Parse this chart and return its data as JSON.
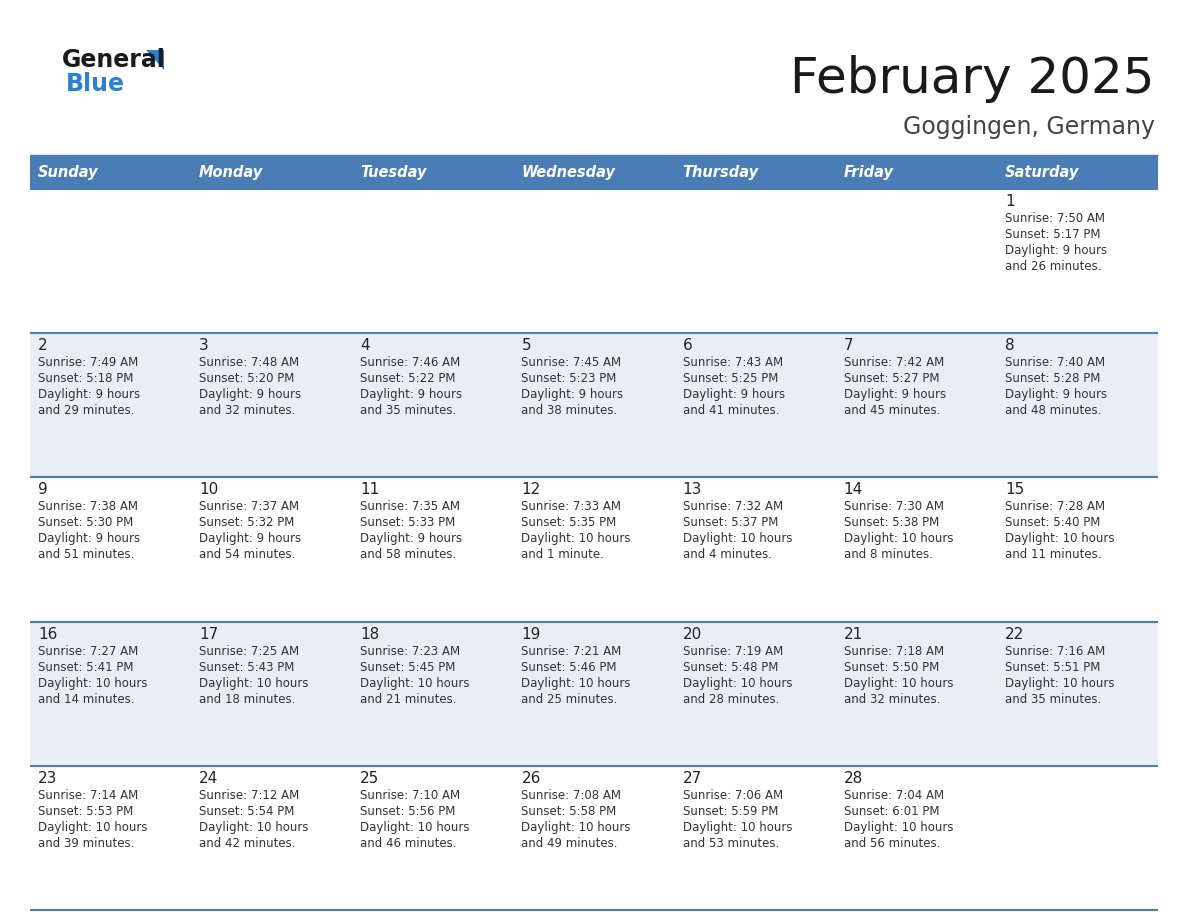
{
  "title": "February 2025",
  "subtitle": "Goggingen, Germany",
  "days_of_week": [
    "Sunday",
    "Monday",
    "Tuesday",
    "Wednesday",
    "Thursday",
    "Friday",
    "Saturday"
  ],
  "header_bg": "#4a7db5",
  "header_text": "#ffffff",
  "row_bg_odd": "#ffffff",
  "row_bg_even": "#e8eef4",
  "day_num_color": "#222222",
  "text_color": "#333333",
  "line_color": "#4a7db5",
  "logo_general_color": "#1a1a1a",
  "logo_blue_color": "#2980d4",
  "logo_triangle_color": "#2980d4",
  "title_color": "#1a1a1a",
  "subtitle_color": "#444444",
  "weeks": [
    {
      "days": [
        {
          "day": null,
          "sunrise": null,
          "sunset": null,
          "daylight_line1": null,
          "daylight_line2": null
        },
        {
          "day": null,
          "sunrise": null,
          "sunset": null,
          "daylight_line1": null,
          "daylight_line2": null
        },
        {
          "day": null,
          "sunrise": null,
          "sunset": null,
          "daylight_line1": null,
          "daylight_line2": null
        },
        {
          "day": null,
          "sunrise": null,
          "sunset": null,
          "daylight_line1": null,
          "daylight_line2": null
        },
        {
          "day": null,
          "sunrise": null,
          "sunset": null,
          "daylight_line1": null,
          "daylight_line2": null
        },
        {
          "day": null,
          "sunrise": null,
          "sunset": null,
          "daylight_line1": null,
          "daylight_line2": null
        },
        {
          "day": "1",
          "sunrise": "Sunrise: 7:50 AM",
          "sunset": "Sunset: 5:17 PM",
          "daylight_line1": "Daylight: 9 hours",
          "daylight_line2": "and 26 minutes."
        }
      ]
    },
    {
      "days": [
        {
          "day": "2",
          "sunrise": "Sunrise: 7:49 AM",
          "sunset": "Sunset: 5:18 PM",
          "daylight_line1": "Daylight: 9 hours",
          "daylight_line2": "and 29 minutes."
        },
        {
          "day": "3",
          "sunrise": "Sunrise: 7:48 AM",
          "sunset": "Sunset: 5:20 PM",
          "daylight_line1": "Daylight: 9 hours",
          "daylight_line2": "and 32 minutes."
        },
        {
          "day": "4",
          "sunrise": "Sunrise: 7:46 AM",
          "sunset": "Sunset: 5:22 PM",
          "daylight_line1": "Daylight: 9 hours",
          "daylight_line2": "and 35 minutes."
        },
        {
          "day": "5",
          "sunrise": "Sunrise: 7:45 AM",
          "sunset": "Sunset: 5:23 PM",
          "daylight_line1": "Daylight: 9 hours",
          "daylight_line2": "and 38 minutes."
        },
        {
          "day": "6",
          "sunrise": "Sunrise: 7:43 AM",
          "sunset": "Sunset: 5:25 PM",
          "daylight_line1": "Daylight: 9 hours",
          "daylight_line2": "and 41 minutes."
        },
        {
          "day": "7",
          "sunrise": "Sunrise: 7:42 AM",
          "sunset": "Sunset: 5:27 PM",
          "daylight_line1": "Daylight: 9 hours",
          "daylight_line2": "and 45 minutes."
        },
        {
          "day": "8",
          "sunrise": "Sunrise: 7:40 AM",
          "sunset": "Sunset: 5:28 PM",
          "daylight_line1": "Daylight: 9 hours",
          "daylight_line2": "and 48 minutes."
        }
      ]
    },
    {
      "days": [
        {
          "day": "9",
          "sunrise": "Sunrise: 7:38 AM",
          "sunset": "Sunset: 5:30 PM",
          "daylight_line1": "Daylight: 9 hours",
          "daylight_line2": "and 51 minutes."
        },
        {
          "day": "10",
          "sunrise": "Sunrise: 7:37 AM",
          "sunset": "Sunset: 5:32 PM",
          "daylight_line1": "Daylight: 9 hours",
          "daylight_line2": "and 54 minutes."
        },
        {
          "day": "11",
          "sunrise": "Sunrise: 7:35 AM",
          "sunset": "Sunset: 5:33 PM",
          "daylight_line1": "Daylight: 9 hours",
          "daylight_line2": "and 58 minutes."
        },
        {
          "day": "12",
          "sunrise": "Sunrise: 7:33 AM",
          "sunset": "Sunset: 5:35 PM",
          "daylight_line1": "Daylight: 10 hours",
          "daylight_line2": "and 1 minute."
        },
        {
          "day": "13",
          "sunrise": "Sunrise: 7:32 AM",
          "sunset": "Sunset: 5:37 PM",
          "daylight_line1": "Daylight: 10 hours",
          "daylight_line2": "and 4 minutes."
        },
        {
          "day": "14",
          "sunrise": "Sunrise: 7:30 AM",
          "sunset": "Sunset: 5:38 PM",
          "daylight_line1": "Daylight: 10 hours",
          "daylight_line2": "and 8 minutes."
        },
        {
          "day": "15",
          "sunrise": "Sunrise: 7:28 AM",
          "sunset": "Sunset: 5:40 PM",
          "daylight_line1": "Daylight: 10 hours",
          "daylight_line2": "and 11 minutes."
        }
      ]
    },
    {
      "days": [
        {
          "day": "16",
          "sunrise": "Sunrise: 7:27 AM",
          "sunset": "Sunset: 5:41 PM",
          "daylight_line1": "Daylight: 10 hours",
          "daylight_line2": "and 14 minutes."
        },
        {
          "day": "17",
          "sunrise": "Sunrise: 7:25 AM",
          "sunset": "Sunset: 5:43 PM",
          "daylight_line1": "Daylight: 10 hours",
          "daylight_line2": "and 18 minutes."
        },
        {
          "day": "18",
          "sunrise": "Sunrise: 7:23 AM",
          "sunset": "Sunset: 5:45 PM",
          "daylight_line1": "Daylight: 10 hours",
          "daylight_line2": "and 21 minutes."
        },
        {
          "day": "19",
          "sunrise": "Sunrise: 7:21 AM",
          "sunset": "Sunset: 5:46 PM",
          "daylight_line1": "Daylight: 10 hours",
          "daylight_line2": "and 25 minutes."
        },
        {
          "day": "20",
          "sunrise": "Sunrise: 7:19 AM",
          "sunset": "Sunset: 5:48 PM",
          "daylight_line1": "Daylight: 10 hours",
          "daylight_line2": "and 28 minutes."
        },
        {
          "day": "21",
          "sunrise": "Sunrise: 7:18 AM",
          "sunset": "Sunset: 5:50 PM",
          "daylight_line1": "Daylight: 10 hours",
          "daylight_line2": "and 32 minutes."
        },
        {
          "day": "22",
          "sunrise": "Sunrise: 7:16 AM",
          "sunset": "Sunset: 5:51 PM",
          "daylight_line1": "Daylight: 10 hours",
          "daylight_line2": "and 35 minutes."
        }
      ]
    },
    {
      "days": [
        {
          "day": "23",
          "sunrise": "Sunrise: 7:14 AM",
          "sunset": "Sunset: 5:53 PM",
          "daylight_line1": "Daylight: 10 hours",
          "daylight_line2": "and 39 minutes."
        },
        {
          "day": "24",
          "sunrise": "Sunrise: 7:12 AM",
          "sunset": "Sunset: 5:54 PM",
          "daylight_line1": "Daylight: 10 hours",
          "daylight_line2": "and 42 minutes."
        },
        {
          "day": "25",
          "sunrise": "Sunrise: 7:10 AM",
          "sunset": "Sunset: 5:56 PM",
          "daylight_line1": "Daylight: 10 hours",
          "daylight_line2": "and 46 minutes."
        },
        {
          "day": "26",
          "sunrise": "Sunrise: 7:08 AM",
          "sunset": "Sunset: 5:58 PM",
          "daylight_line1": "Daylight: 10 hours",
          "daylight_line2": "and 49 minutes."
        },
        {
          "day": "27",
          "sunrise": "Sunrise: 7:06 AM",
          "sunset": "Sunset: 5:59 PM",
          "daylight_line1": "Daylight: 10 hours",
          "daylight_line2": "and 53 minutes."
        },
        {
          "day": "28",
          "sunrise": "Sunrise: 7:04 AM",
          "sunset": "Sunset: 6:01 PM",
          "daylight_line1": "Daylight: 10 hours",
          "daylight_line2": "and 56 minutes."
        },
        {
          "day": null,
          "sunrise": null,
          "sunset": null,
          "daylight_line1": null,
          "daylight_line2": null
        }
      ]
    }
  ]
}
